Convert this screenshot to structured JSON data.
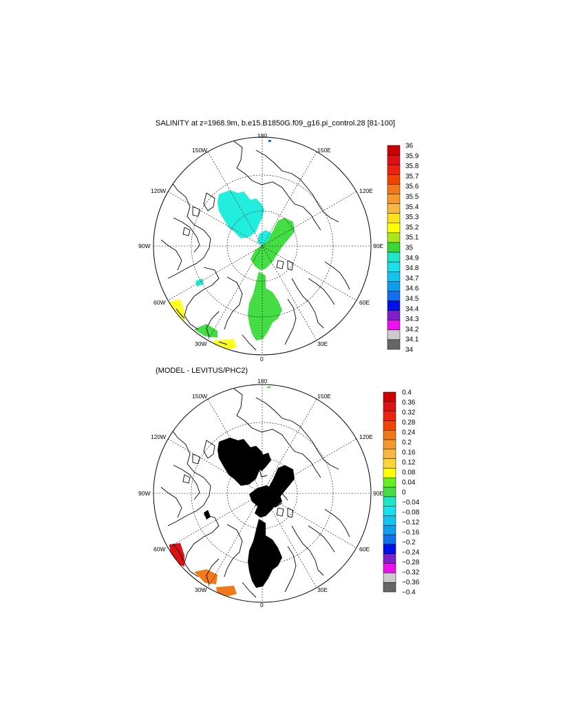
{
  "panels": [
    {
      "title": "SALINITY at z=1968.9m, b.e15.B1850G.f09_g16.pi_control.28 [81-100]",
      "lon_labels": [
        "180",
        "150E",
        "120E",
        "90E",
        "60E",
        "30E",
        "0",
        "30W",
        "60W",
        "90W",
        "120W",
        "150W"
      ],
      "colorbar": {
        "labels": [
          "36",
          "35.9",
          "35.8",
          "35.7",
          "35.6",
          "35.5",
          "35.4",
          "35.3",
          "35.2",
          "35.1",
          "35",
          "34.9",
          "34.8",
          "34.7",
          "34.6",
          "34.5",
          "34.4",
          "34.3",
          "34.2",
          "34.1",
          "34"
        ],
        "colors": [
          "#cc0000",
          "#dd1111",
          "#ee2211",
          "#f04400",
          "#f07a1a",
          "#f59a2a",
          "#f8b840",
          "#fbe21a",
          "#ffff00",
          "#a8e81a",
          "#38d838",
          "#20e6c8",
          "#18e0ee",
          "#10c6ee",
          "#0aa0ee",
          "#1070ee",
          "#0010e8",
          "#8020c8",
          "#ee10ee",
          "#cccccc",
          "#666666"
        ]
      },
      "field_colors": {
        "main": "#22eedd",
        "secondary": "#44dd44",
        "warm": "#ffff22"
      }
    },
    {
      "title": "(MODEL - LEVITUS/PHC2)",
      "lon_labels": [
        "180",
        "150E",
        "120E",
        "90E",
        "60E",
        "30E",
        "0",
        "30W",
        "60W",
        "90W",
        "120W",
        "150W"
      ],
      "colorbar": {
        "labels": [
          "0.4",
          "0.36",
          "0.32",
          "0.28",
          "0.24",
          "0.2",
          "0.16",
          "0.12",
          "0.08",
          "0.04",
          "0",
          "−0.04",
          "−0.08",
          "−0.12",
          "−0.16",
          "−0.2",
          "−0.24",
          "−0.28",
          "−0.32",
          "−0.36",
          "−0.4"
        ],
        "colors": [
          "#cc0000",
          "#dd1111",
          "#ee2211",
          "#f04400",
          "#f07a1a",
          "#f59a2a",
          "#f8b840",
          "#fbd43a",
          "#ffff00",
          "#66ee22",
          "#44dd44",
          "#20e6c8",
          "#18e0ee",
          "#10c6ee",
          "#0aa0ee",
          "#1070ee",
          "#0010e8",
          "#8020c8",
          "#ee10ee",
          "#cccccc",
          "#666666"
        ]
      },
      "field_colors": {
        "main": "#44dd44",
        "secondary": "#f8d030",
        "warm": "#ffff22"
      }
    }
  ]
}
